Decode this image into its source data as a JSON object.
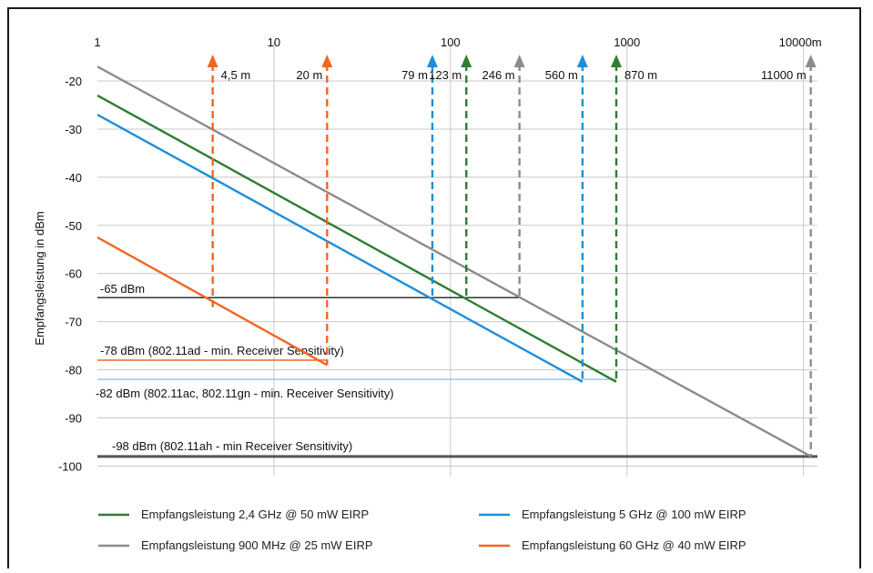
{
  "chart_data": {
    "type": "line",
    "title": "",
    "xlabel": "",
    "ylabel": "Empfangsleistung in dBm",
    "x_scale": "log",
    "xlim": [
      1,
      12000
    ],
    "ylim": [
      -102,
      -13
    ],
    "grid": true,
    "legend_position": "bottom",
    "x_ticks": [
      {
        "value": 1,
        "label": "1"
      },
      {
        "value": 10,
        "label": "10"
      },
      {
        "value": 100,
        "label": "100"
      },
      {
        "value": 1000,
        "label": "1000"
      },
      {
        "value": 10000,
        "label": "10000m"
      }
    ],
    "y_ticks": [
      {
        "value": -20,
        "label": "-20"
      },
      {
        "value": -30,
        "label": "-30"
      },
      {
        "value": -40,
        "label": "-40"
      },
      {
        "value": -50,
        "label": "-50"
      },
      {
        "value": -60,
        "label": "-60"
      },
      {
        "value": -70,
        "label": "-70"
      },
      {
        "value": -80,
        "label": "-80"
      },
      {
        "value": -90,
        "label": "-90"
      },
      {
        "value": -100,
        "label": "-100"
      }
    ],
    "series": [
      {
        "name": "Empfangsleistung 2,4 GHz @ 50 mW EIRP",
        "color": "#2e7d32",
        "x": [
          1,
          870,
          870
        ],
        "y": [
          -23,
          -82.5,
          -82.5
        ]
      },
      {
        "name": "Empfangsleistung 5 GHz @ 100 mW EIRP",
        "color": "#1e8ed8",
        "x": [
          1,
          560
        ],
        "y": [
          -27,
          -82.5
        ]
      },
      {
        "name": "Empfangsleistung 900 MHz @ 25 mW EIRP",
        "color": "#8c8c8c",
        "x": [
          1,
          11000
        ],
        "y": [
          -17,
          -98
        ]
      },
      {
        "name": "Empfangsleistung 60 GHz @ 40 mW EIRP",
        "color": "#f26522",
        "x": [
          1,
          20
        ],
        "y": [
          -52.5,
          -79
        ]
      }
    ],
    "thresholds": [
      {
        "y": -65,
        "label": "-65 dBm",
        "color": "#333333",
        "x_start": 1,
        "x_end": 246,
        "label_color": "#111111"
      },
      {
        "y": -78,
        "label": "-78 dBm (802.11ad - min. Receiver Sensitivity)",
        "color": "#f26522",
        "x_start": 1,
        "x_end": 20,
        "label_color": "#8a8a8a"
      },
      {
        "y": -82,
        "label": "-82 dBm (802.11ac, 802.11gn - min. Receiver Sensitivity)",
        "color": "#9cc7e8",
        "x_start": 1,
        "x_end": 870,
        "label_color": "#111111"
      },
      {
        "y": -98,
        "label": "-98 dBm (802.11ah - min Receiver Sensitivity)",
        "color": "#555555",
        "x_start": 1,
        "x_end": 12000,
        "label_color": "#111111"
      }
    ],
    "markers": [
      {
        "x": 4.5,
        "label": "4,5 m",
        "color": "#f26522",
        "y_bottom": -67
      },
      {
        "x": 20,
        "label": "20 m",
        "color": "#f26522",
        "y_bottom": -79
      },
      {
        "x": 79,
        "label": "79 m",
        "color": "#1e8ed8",
        "y_bottom": -65
      },
      {
        "x": 123,
        "label": "123 m",
        "color": "#2e7d32",
        "y_bottom": -65
      },
      {
        "x": 246,
        "label": "246 m",
        "color": "#8c8c8c",
        "y_bottom": -65
      },
      {
        "x": 560,
        "label": "560 m",
        "color": "#1e8ed8",
        "y_bottom": -82
      },
      {
        "x": 870,
        "label": "870 m",
        "color": "#2e7d32",
        "y_bottom": -82
      },
      {
        "x": 11000,
        "label": "11000 m",
        "color": "#8c8c8c",
        "y_bottom": -98
      }
    ]
  }
}
